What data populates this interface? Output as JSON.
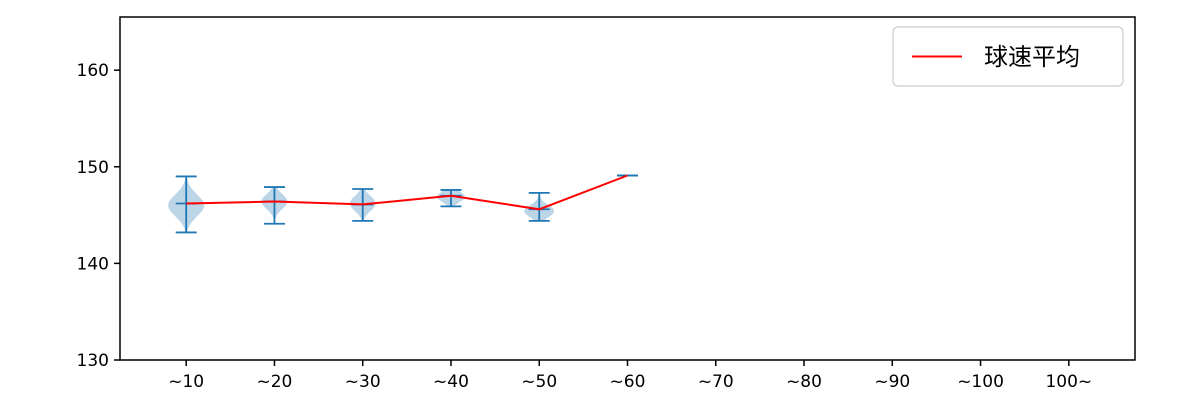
{
  "chart_data": {
    "type": "violin",
    "title": "",
    "xlabel": "",
    "ylabel": "",
    "categories": [
      "~10",
      "~20",
      "~30",
      "~40",
      "~50",
      "~60",
      "~70",
      "~80",
      "~90",
      "~100",
      "100~"
    ],
    "ylim": [
      130,
      165.5
    ],
    "yticks": [
      130,
      140,
      150,
      160
    ],
    "grid": false,
    "legend": {
      "label": "球速平均",
      "position": "upper right",
      "line_color": "#ff0000"
    },
    "series": [
      {
        "name": "球速平均",
        "type": "line",
        "color": "#ff0000",
        "values": [
          146.2,
          146.4,
          146.1,
          147.0,
          145.6,
          149.1,
          null,
          null,
          null,
          null,
          null
        ]
      }
    ],
    "violins": [
      {
        "category": "~10",
        "min": 143.2,
        "max": 149.0,
        "mean": 146.2,
        "bulge_center": 146.0,
        "bulge_spread": 1.6,
        "rel_width": 1.0
      },
      {
        "category": "~20",
        "min": 144.1,
        "max": 147.9,
        "mean": 146.4,
        "bulge_center": 146.4,
        "bulge_spread": 1.1,
        "rel_width": 0.72
      },
      {
        "category": "~30",
        "min": 144.4,
        "max": 147.7,
        "mean": 146.1,
        "bulge_center": 146.2,
        "bulge_spread": 1.1,
        "rel_width": 0.72
      },
      {
        "category": "~40",
        "min": 145.9,
        "max": 147.6,
        "mean": 147.0,
        "bulge_center": 146.9,
        "bulge_spread": 0.8,
        "rel_width": 0.78
      },
      {
        "category": "~50",
        "min": 144.4,
        "max": 147.3,
        "mean": 145.6,
        "bulge_center": 145.4,
        "bulge_spread": 0.9,
        "rel_width": 0.83
      },
      {
        "category": "~60",
        "min": 149.1,
        "max": 149.1,
        "mean": 149.1,
        "bulge_center": 149.1,
        "bulge_spread": 0.3,
        "rel_width": 0.0
      }
    ],
    "colors": {
      "violin_fill": "#bcd6e8",
      "violin_line": "#1f77b4",
      "mean_line": "#ff0000",
      "axis": "#000000",
      "legend_border": "#cccccc"
    }
  }
}
